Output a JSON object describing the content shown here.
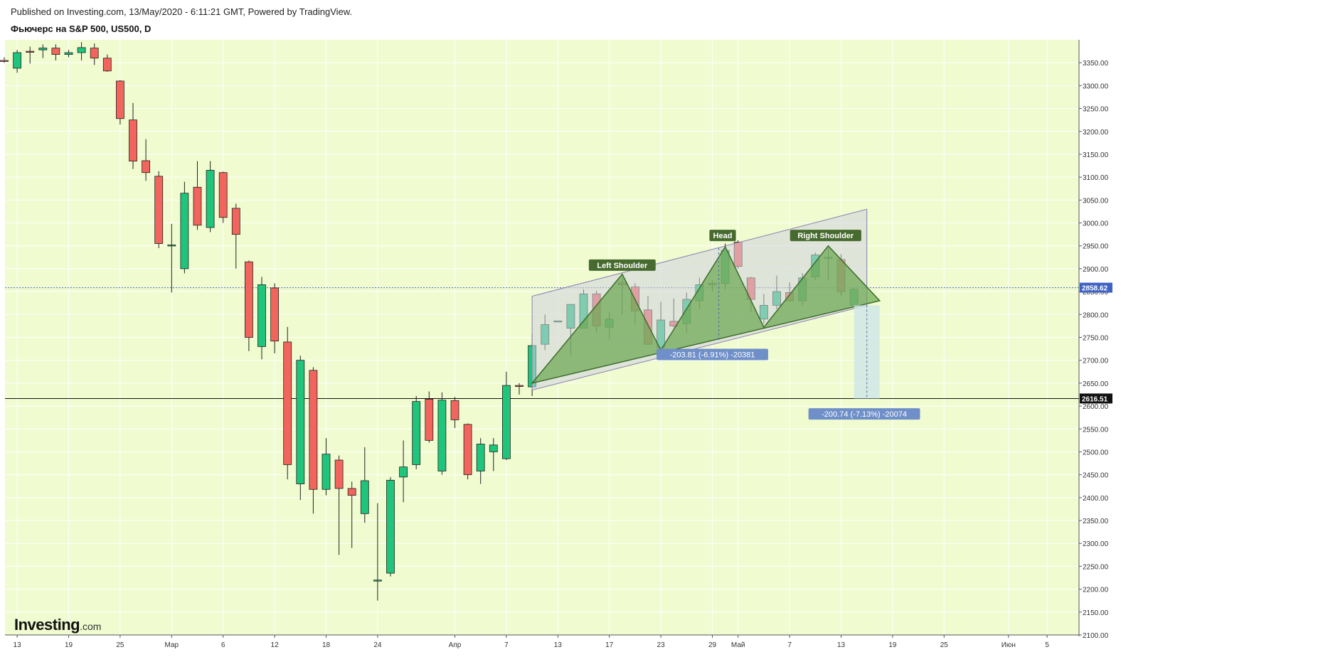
{
  "header": {
    "published": "Published on Investing.com, 13/May/2020 - 6:11:21 GMT, Powered by TradingView.",
    "title": "Фьючерс на S&P 500, US500, D"
  },
  "logo": {
    "main": "Investing",
    "suffix": ".com"
  },
  "colors": {
    "background": "#f0fbd0",
    "up": "#1ec57a",
    "down": "#f2655d",
    "wedge_fill": "#cfd2dd",
    "pattern_fill": "#6aa64f",
    "label_bg": "#476a2f",
    "measure_bg": "#6f8fc8",
    "target_zone": "#cfe6e8"
  },
  "chart_data": {
    "type": "candlestick",
    "ylim": [
      2100,
      3400
    ],
    "y_ticks": [
      "3350.00",
      "3300.00",
      "3250.00",
      "3200.00",
      "3150.00",
      "3100.00",
      "3050.00",
      "3000.00",
      "2950.00",
      "2900.00",
      "2850.00",
      "2800.00",
      "2750.00",
      "2700.00",
      "2650.00",
      "2600.00",
      "2550.00",
      "2500.00",
      "2450.00",
      "2400.00",
      "2350.00",
      "2300.00",
      "2250.00",
      "2200.00",
      "2150.00",
      "2100.00"
    ],
    "x_ticks": [
      {
        "label": "13",
        "i": 1
      },
      {
        "label": "19",
        "i": 5
      },
      {
        "label": "25",
        "i": 9
      },
      {
        "label": "Мар",
        "i": 13
      },
      {
        "label": "6",
        "i": 17
      },
      {
        "label": "12",
        "i": 21
      },
      {
        "label": "18",
        "i": 25
      },
      {
        "label": "24",
        "i": 29
      },
      {
        "label": "Апр",
        "i": 35
      },
      {
        "label": "7",
        "i": 39
      },
      {
        "label": "13",
        "i": 43
      },
      {
        "label": "17",
        "i": 47
      },
      {
        "label": "23",
        "i": 51
      },
      {
        "label": "29",
        "i": 55
      },
      {
        "label": "Май",
        "i": 57
      },
      {
        "label": "7",
        "i": 61
      },
      {
        "label": "13",
        "i": 65
      },
      {
        "label": "19",
        "i": 69
      },
      {
        "label": "25",
        "i": 73
      },
      {
        "label": "Июн",
        "i": 78
      },
      {
        "label": "5",
        "i": 81
      }
    ],
    "candles": [
      [
        3355,
        3362,
        3350,
        3353
      ],
      [
        3338,
        3378,
        3328,
        3372
      ],
      [
        3375,
        3385,
        3348,
        3373
      ],
      [
        3378,
        3390,
        3360,
        3382
      ],
      [
        3382,
        3390,
        3355,
        3368
      ],
      [
        3368,
        3378,
        3362,
        3372
      ],
      [
        3372,
        3395,
        3355,
        3383
      ],
      [
        3382,
        3392,
        3345,
        3360
      ],
      [
        3360,
        3368,
        3330,
        3332
      ],
      [
        3310,
        3312,
        3215,
        3228
      ],
      [
        3225,
        3262,
        3118,
        3135
      ],
      [
        3136,
        3183,
        3092,
        3110
      ],
      [
        3102,
        3113,
        2945,
        2955
      ],
      [
        2952,
        2998,
        2848,
        2952
      ],
      [
        2900,
        3090,
        2890,
        3065
      ],
      [
        3078,
        3135,
        2985,
        2995
      ],
      [
        2990,
        3135,
        2980,
        3115
      ],
      [
        3110,
        3112,
        3000,
        3012
      ],
      [
        3032,
        3042,
        2900,
        2975
      ],
      [
        2915,
        2918,
        2720,
        2750
      ],
      [
        2730,
        2882,
        2702,
        2865
      ],
      [
        2858,
        2868,
        2715,
        2742
      ],
      [
        2740,
        2773,
        2440,
        2472
      ],
      [
        2430,
        2710,
        2395,
        2700
      ],
      [
        2678,
        2685,
        2365,
        2418
      ],
      [
        2418,
        2530,
        2405,
        2495
      ],
      [
        2482,
        2492,
        2275,
        2420
      ],
      [
        2420,
        2435,
        2290,
        2405
      ],
      [
        2365,
        2510,
        2345,
        2437
      ],
      [
        2220,
        2388,
        2175,
        2220
      ],
      [
        2235,
        2445,
        2228,
        2438
      ],
      [
        2445,
        2525,
        2390,
        2467
      ],
      [
        2472,
        2622,
        2462,
        2610
      ],
      [
        2615,
        2632,
        2520,
        2525
      ],
      [
        2458,
        2630,
        2450,
        2613
      ],
      [
        2612,
        2620,
        2552,
        2570
      ],
      [
        2560,
        2562,
        2440,
        2450
      ],
      [
        2458,
        2530,
        2430,
        2517
      ],
      [
        2500,
        2530,
        2458,
        2515
      ],
      [
        2485,
        2675,
        2482,
        2645
      ],
      [
        2645,
        2650,
        2625,
        2643
      ],
      [
        2642,
        2758,
        2622,
        2732
      ],
      [
        2735,
        2800,
        2722,
        2778
      ],
      [
        2786,
        2786,
        2786,
        2786
      ],
      [
        2770,
        2810,
        2710,
        2822
      ],
      [
        2770,
        2855,
        2770,
        2845
      ],
      [
        2845,
        2852,
        2760,
        2775
      ],
      [
        2772,
        2805,
        2745,
        2790
      ],
      [
        2870,
        2880,
        2800,
        2865
      ],
      [
        2860,
        2868,
        2778,
        2808
      ],
      [
        2810,
        2840,
        2735,
        2735
      ],
      [
        2728,
        2828,
        2712,
        2788
      ],
      [
        2785,
        2835,
        2772,
        2775
      ],
      [
        2780,
        2848,
        2760,
        2833
      ],
      [
        2830,
        2880,
        2812,
        2865
      ],
      [
        2865,
        2875,
        2850,
        2868
      ],
      [
        2868,
        2955,
        2855,
        2940
      ],
      [
        2958,
        2962,
        2900,
        2905
      ],
      [
        2880,
        2882,
        2805,
        2833
      ],
      [
        2790,
        2845,
        2780,
        2820
      ],
      [
        2820,
        2885,
        2812,
        2850
      ],
      [
        2848,
        2870,
        2828,
        2830
      ],
      [
        2830,
        2890,
        2820,
        2880
      ],
      [
        2882,
        2935,
        2875,
        2930
      ],
      [
        2925,
        2945,
        2875,
        2925
      ],
      [
        2920,
        2932,
        2840,
        2850
      ],
      [
        2820,
        2858,
        2815,
        2855
      ]
    ],
    "current_price": "2858.62",
    "support_level": "2616.51",
    "annotations": {
      "left_shoulder": "Left Shoulder",
      "head": "Head",
      "right_shoulder": "Right Shoulder",
      "measure_1": "-203.81 (-6.91%) -20381",
      "measure_2": "-200.74 (-7.13%) -20074"
    }
  }
}
